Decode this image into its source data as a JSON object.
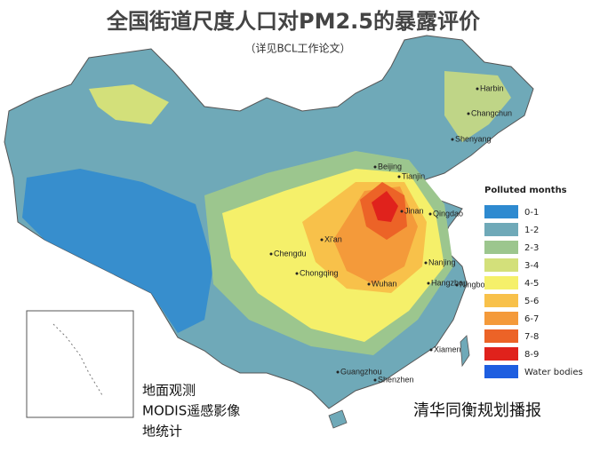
{
  "title": "全国街道尺度人口对PM2.5的暴露评价",
  "subtitle": "（详见BCL工作论文）",
  "cities": [
    "Harbin",
    "Changchun",
    "Shenyang",
    "Beijing",
    "Tianjin",
    "Jinan",
    "Qingdao",
    "Xi'an",
    "Nanjing",
    "Chengdu",
    "Chongqing",
    "Wuhan",
    "Hangzhou",
    "Ningbo",
    "Xiamen",
    "Guangzhou",
    "Shenzhen"
  ],
  "legend": {
    "title": "Polluted months",
    "items": [
      {
        "label": "0-1",
        "color": "#2e8ad0"
      },
      {
        "label": "1-2",
        "color": "#6fa9b8"
      },
      {
        "label": "2-3",
        "color": "#9cc68e"
      },
      {
        "label": "3-4",
        "color": "#d3e07a"
      },
      {
        "label": "4-5",
        "color": "#f5f06a"
      },
      {
        "label": "5-6",
        "color": "#f8c14a"
      },
      {
        "label": "6-7",
        "color": "#f49a3a"
      },
      {
        "label": "7-8",
        "color": "#ec6327"
      },
      {
        "label": "8-9",
        "color": "#e0221c"
      },
      {
        "label": "Water bodies",
        "color": "#1e5ee0"
      }
    ]
  },
  "notes": [
    "地面观测",
    "MODIS遥感影像",
    "地统计"
  ],
  "watermark": "清华同衡规划播报"
}
